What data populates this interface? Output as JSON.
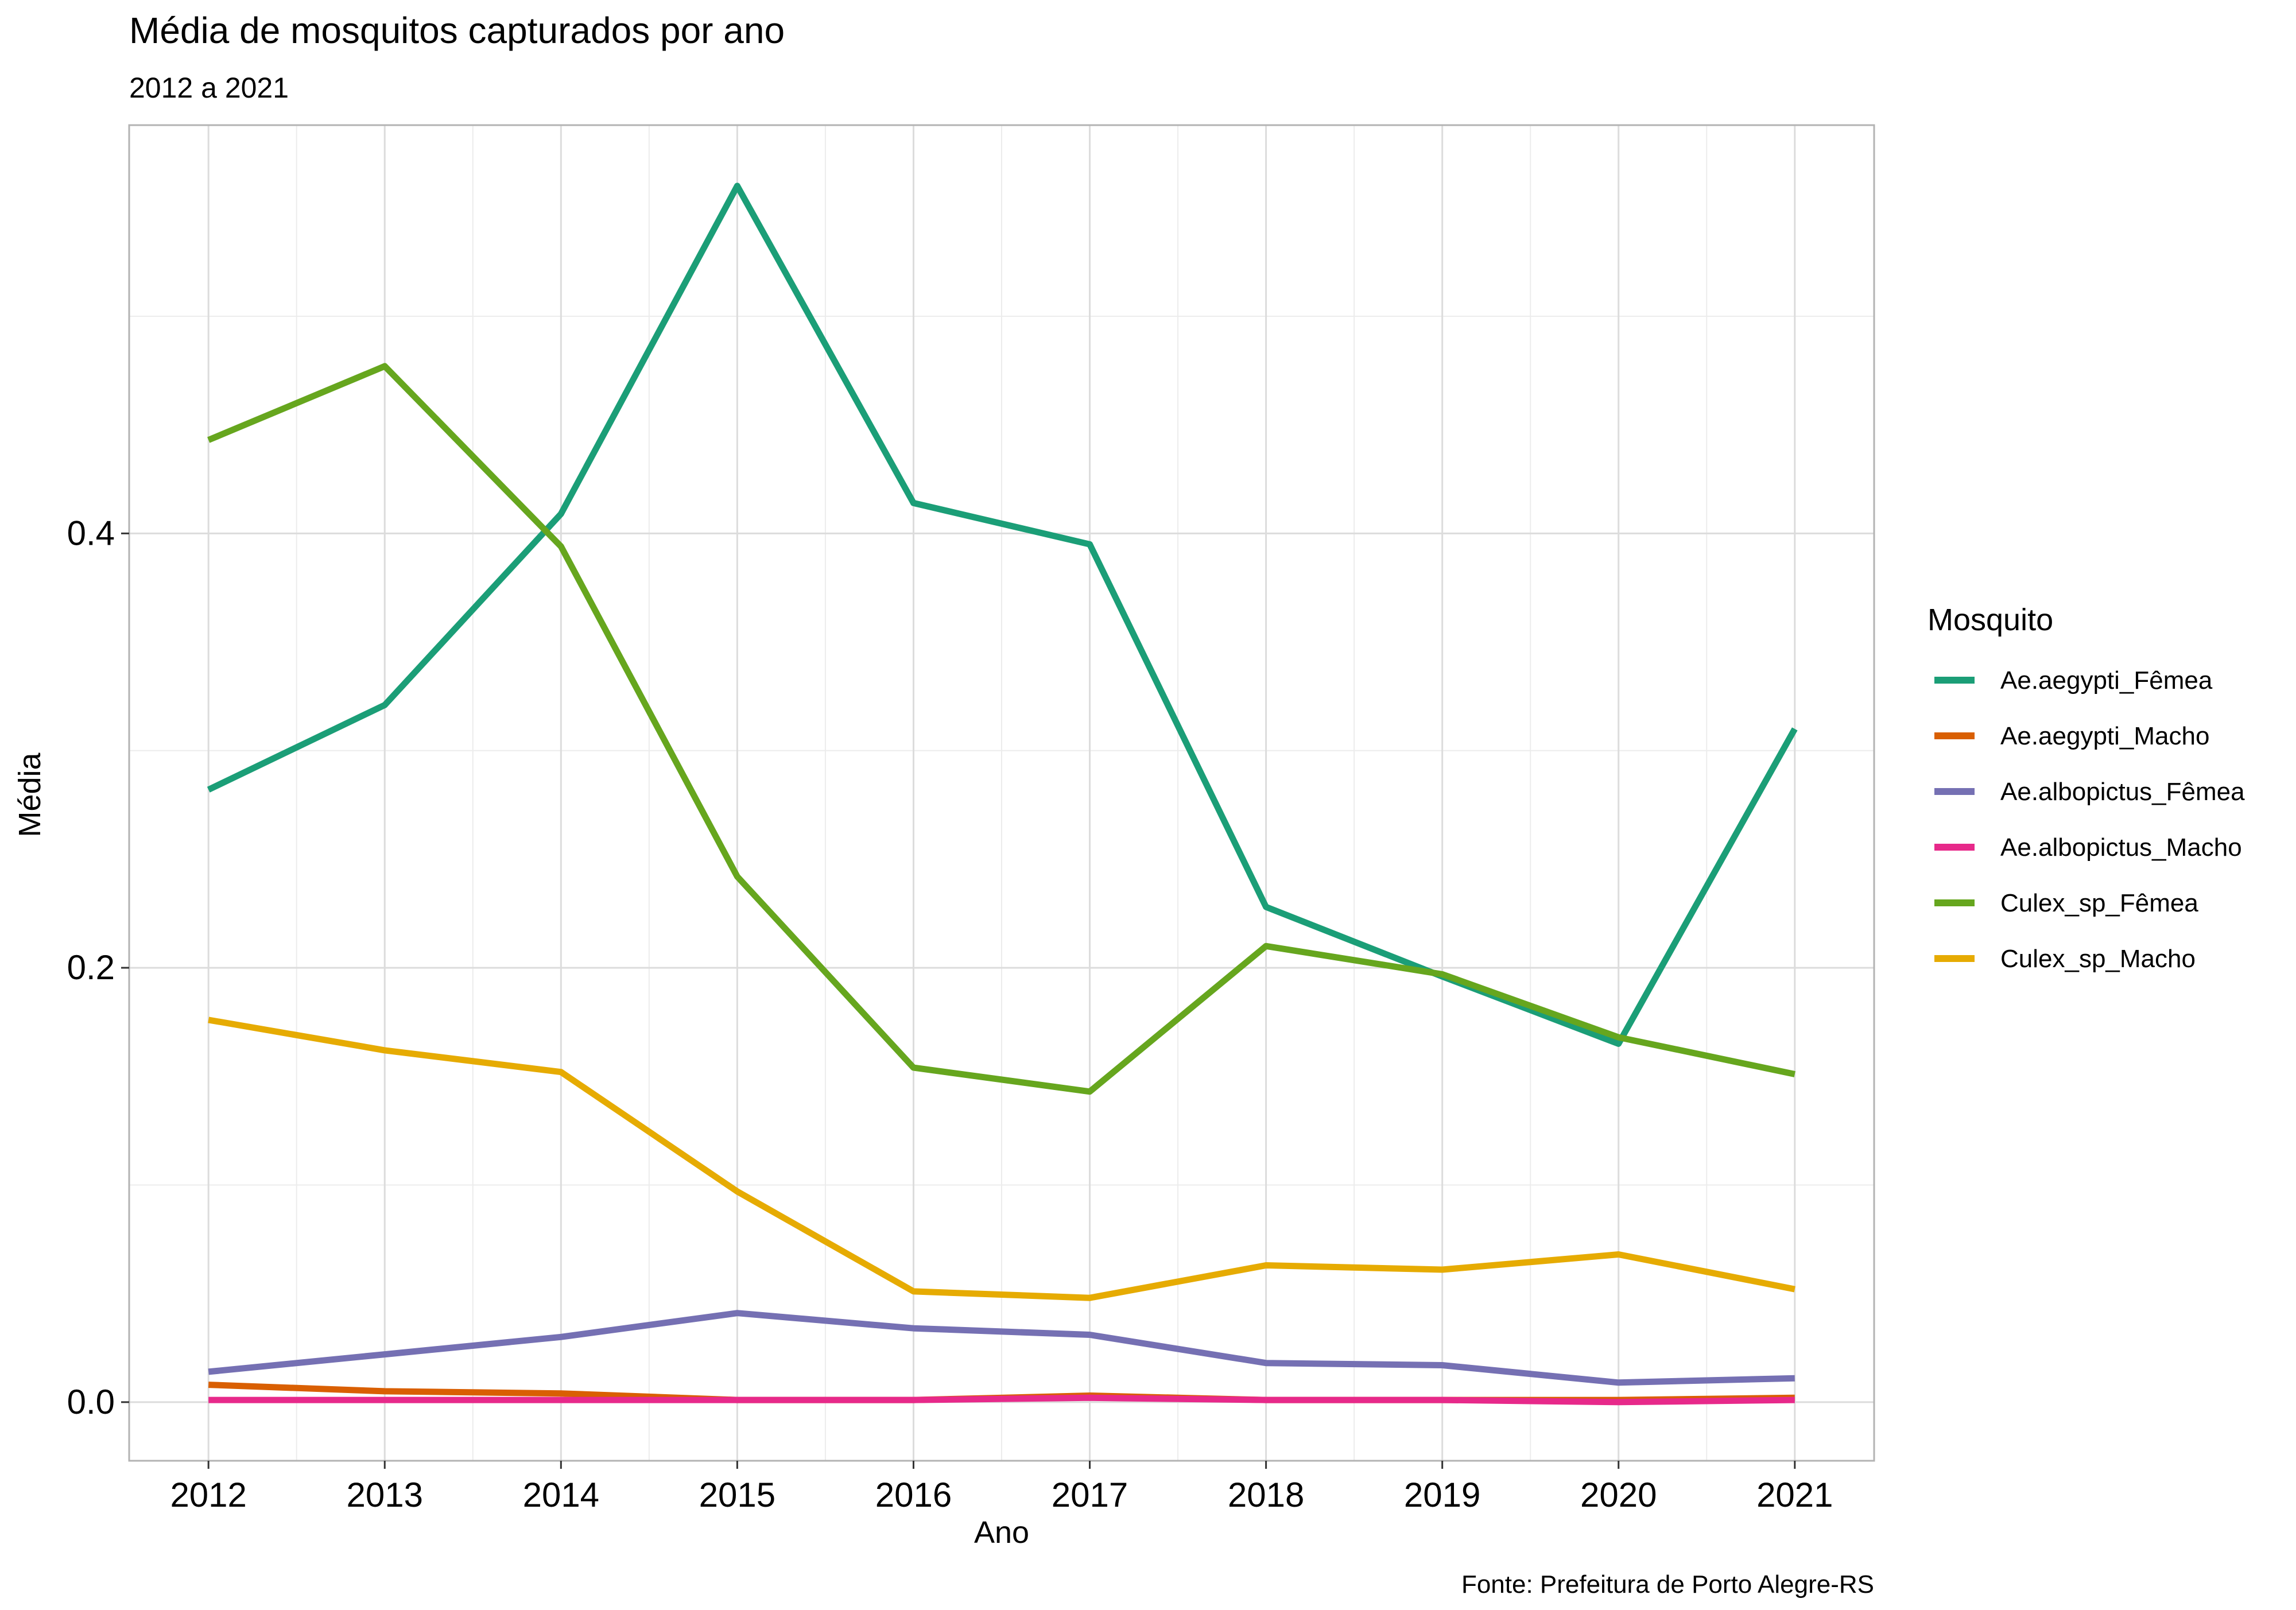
{
  "chart_data": {
    "type": "line",
    "title": "Média de mosquitos capturados por ano",
    "subtitle": "2012 a 2021",
    "xlabel": "Ano",
    "ylabel": "Média",
    "caption": "Fonte: Prefeitura de Porto Alegre-RS",
    "x": [
      2012,
      2013,
      2014,
      2015,
      2016,
      2017,
      2018,
      2019,
      2020,
      2021
    ],
    "x_ticks": [
      "2012",
      "2013",
      "2014",
      "2015",
      "2016",
      "2017",
      "2018",
      "2019",
      "2020",
      "2021"
    ],
    "y_ticks": [
      "0.0",
      "0.2",
      "0.4"
    ],
    "xlim": [
      2011.55,
      2021.45
    ],
    "ylim": [
      -0.027,
      0.588
    ],
    "grid": true,
    "legend": {
      "title": "Mosquito",
      "position": "right"
    },
    "series": [
      {
        "name": "Ae.aegypti_Fêmea",
        "color": "#1B9E77",
        "values": [
          0.282,
          0.321,
          0.409,
          0.56,
          0.414,
          0.395,
          0.228,
          0.196,
          0.165,
          0.31
        ]
      },
      {
        "name": "Ae.aegypti_Macho",
        "color": "#D95F02",
        "values": [
          0.008,
          0.005,
          0.004,
          0.001,
          0.001,
          0.003,
          0.001,
          0.001,
          0.001,
          0.002
        ]
      },
      {
        "name": "Ae.albopictus_Fêmea",
        "color": "#7570B3",
        "values": [
          0.014,
          0.022,
          0.03,
          0.041,
          0.034,
          0.031,
          0.018,
          0.017,
          0.009,
          0.011
        ]
      },
      {
        "name": "Ae.albopictus_Macho",
        "color": "#E7298A",
        "values": [
          0.001,
          0.001,
          0.001,
          0.001,
          0.001,
          0.002,
          0.001,
          0.001,
          0.0,
          0.001
        ]
      },
      {
        "name": "Culex_sp_Fêmea",
        "color": "#66A61E",
        "values": [
          0.443,
          0.477,
          0.394,
          0.242,
          0.154,
          0.143,
          0.21,
          0.197,
          0.168,
          0.151
        ]
      },
      {
        "name": "Culex_sp_Macho",
        "color": "#E6AB02",
        "values": [
          0.176,
          0.162,
          0.152,
          0.097,
          0.051,
          0.048,
          0.063,
          0.061,
          0.068,
          0.052
        ]
      }
    ]
  }
}
